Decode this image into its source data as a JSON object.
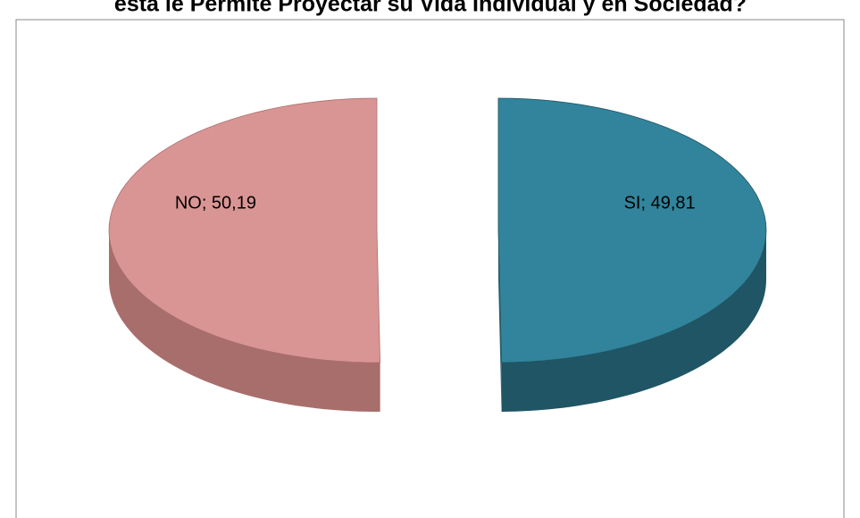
{
  "chart_data": {
    "type": "pie3d",
    "title": "esta le Permite Proyectar su Vida Individual y en Sociedad?",
    "values": [
      49.81,
      50.19
    ],
    "value_labels": [
      "SI; 49,81",
      "NO; 50,19"
    ],
    "colors": [
      "#31849b",
      "#d99594"
    ],
    "side_colors": [
      "#1f5564",
      "#a86e6c"
    ]
  }
}
